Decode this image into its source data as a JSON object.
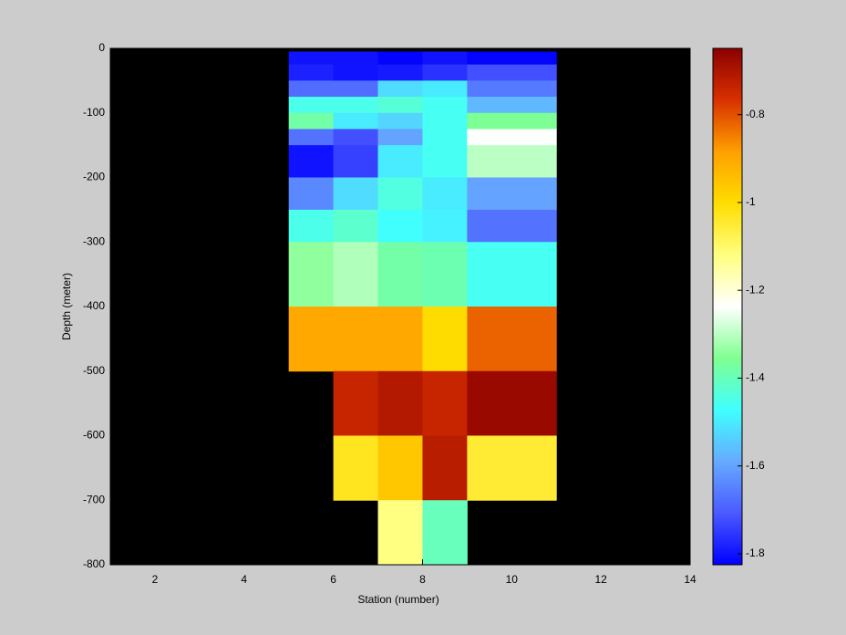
{
  "chart_data": {
    "type": "heatmap",
    "xlabel": "Station (number)",
    "ylabel": "Depth (meter)",
    "xlim": [
      1,
      14
    ],
    "xticks": [
      2,
      4,
      6,
      8,
      10,
      12,
      14
    ],
    "ylim": [
      -800,
      0
    ],
    "yticks": [
      0,
      -100,
      -200,
      -300,
      -400,
      -500,
      -600,
      -700,
      -800
    ],
    "x_edges": [
      5,
      6,
      7,
      8,
      9,
      11
    ],
    "y_edges": [
      -5,
      -25,
      -50,
      -75,
      -100,
      -125,
      -150,
      -200,
      -250,
      -300,
      -400,
      -500,
      -600,
      -700,
      -800
    ],
    "values": [
      [
        -1.8,
        -1.8,
        -1.82,
        -1.8,
        -1.82
      ],
      [
        -1.78,
        -1.8,
        -1.79,
        -1.76,
        -1.72
      ],
      [
        -1.68,
        -1.68,
        -1.52,
        -1.5,
        -1.66
      ],
      [
        -1.45,
        -1.45,
        -1.43,
        -1.46,
        -1.57
      ],
      [
        -1.38,
        -1.5,
        -1.53,
        -1.46,
        -1.36
      ],
      [
        -1.67,
        -1.72,
        -1.6,
        -1.46,
        -1.24
      ],
      [
        -1.8,
        -1.74,
        -1.5,
        -1.46,
        -1.3
      ],
      [
        -1.64,
        -1.52,
        -1.44,
        -1.5,
        -1.6
      ],
      [
        -1.45,
        -1.42,
        -1.47,
        -1.49,
        -1.67
      ],
      [
        -1.34,
        -1.31,
        -1.38,
        -1.39,
        -1.46
      ],
      [
        -0.9,
        -0.9,
        -0.9,
        -1.0,
        -0.82
      ],
      [
        null,
        -0.74,
        -0.71,
        -0.74,
        -0.67
      ],
      [
        null,
        -1.03,
        -0.96,
        -0.72,
        -1.05
      ],
      [
        null,
        null,
        -1.12,
        -1.4,
        null
      ]
    ],
    "background": "#000000",
    "colormap": [
      "#0000ff",
      "#4a5aff",
      "#66aaff",
      "#40ffff",
      "#80ff90",
      "#ffffff",
      "#ffff80",
      "#ffdd00",
      "#ffa000",
      "#d83000",
      "#8b0000"
    ],
    "clim": [
      -1.825,
      -0.649
    ],
    "cticks": [
      -1.8,
      -1.6,
      -1.4,
      -1.2,
      -1,
      -0.8
    ]
  }
}
